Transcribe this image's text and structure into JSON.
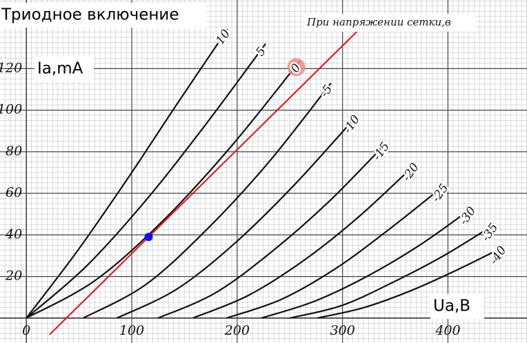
{
  "chart_data": {
    "type": "line",
    "title": "Триодное включение",
    "subtitle": "При напряжении сетки,в",
    "y_label": "Ia,mA",
    "x_label": "Ua,B",
    "xlim": [
      -25,
      475
    ],
    "ylim": [
      -12,
      153
    ],
    "xticks": [
      0,
      100,
      200,
      300,
      400
    ],
    "yticks": [
      20,
      40,
      60,
      80,
      100,
      120
    ],
    "grid": true,
    "series": [
      {
        "name": "10",
        "color": "#111111",
        "x": [
          0,
          48,
          96,
          143,
          191
        ],
        "values": [
          0,
          32,
          67,
          103,
          139
        ]
      },
      {
        "name": "5",
        "color": "#111111",
        "x": [
          0,
          57,
          114,
          170,
          227
        ],
        "values": [
          0,
          25,
          57,
          93,
          132
        ]
      },
      {
        "name": "0",
        "color": "#111111",
        "highlight": "#f28a8a",
        "x": [
          0,
          65,
          130,
          195,
          260
        ],
        "values": [
          0,
          18,
          47,
          83,
          124
        ]
      },
      {
        "name": "-5",
        "color": "#111111",
        "x": [
          54,
          113,
          172,
          230,
          289
        ],
        "values": [
          0,
          16,
          43,
          75,
          113
        ]
      },
      {
        "name": "-10",
        "color": "#111111",
        "x": [
          86,
          143,
          200,
          256,
          313
        ],
        "values": [
          0,
          14,
          37,
          65,
          97
        ]
      },
      {
        "name": "-15",
        "color": "#111111",
        "x": [
          125,
          179,
          233,
          287,
          341
        ],
        "values": [
          0,
          12,
          32,
          56,
          84
        ]
      },
      {
        "name": "-20",
        "color": "#111111",
        "x": [
          158,
          211,
          264,
          316,
          369
        ],
        "values": [
          0,
          11,
          28,
          49,
          74
        ]
      },
      {
        "name": "-25",
        "color": "#111111",
        "x": [
          190,
          242,
          294,
          345,
          397
        ],
        "values": [
          0,
          9,
          24,
          43,
          64
        ]
      },
      {
        "name": "-30",
        "color": "#111111",
        "x": [
          223,
          273,
          323,
          373,
          423
        ],
        "values": [
          0,
          8,
          20,
          35,
          53
        ]
      },
      {
        "name": "-35",
        "color": "#111111",
        "x": [
          250,
          299,
          347,
          396,
          444
        ],
        "values": [
          0,
          6,
          17,
          30,
          45
        ]
      },
      {
        "name": "-40",
        "color": "#111111",
        "x": [
          276,
          320,
          364,
          408,
          452
        ],
        "values": [
          0,
          5,
          13,
          23,
          34
        ]
      }
    ],
    "load_line": {
      "color": "#e01010",
      "x": [
        22,
        328
      ],
      "values": [
        -8,
        145
      ]
    },
    "point": {
      "color": "#1010ee",
      "x": 116,
      "value": 39
    }
  }
}
